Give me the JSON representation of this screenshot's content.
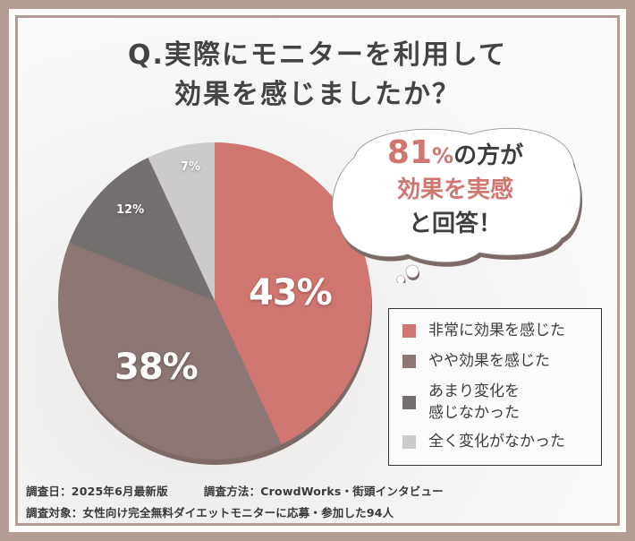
{
  "title": {
    "line1": "Q.実際にモニターを利用して",
    "line2": "効果を感じましたか？"
  },
  "bubble": {
    "pct_number": "81",
    "pct_sign": "%",
    "line1_rest": "の方が",
    "line2": "効果を実感",
    "line3": "と回答！"
  },
  "legend": {
    "items": [
      {
        "label": "非常に効果を感じた",
        "color": "#d07671"
      },
      {
        "label": "やや効果を感じた",
        "color": "#8c7774"
      },
      {
        "label": "あまり変化を\n感じなかった",
        "color": "#757070"
      },
      {
        "label": "全く変化がなかった",
        "color": "#cccaca"
      }
    ]
  },
  "slice_labels": {
    "very": "43%",
    "somewhat": "38%",
    "little": "12%",
    "none": "7%"
  },
  "footer": {
    "date": "調査日：2025年6月最新版",
    "method": "調査方法：CrowdWorks・街頭インタビュー",
    "target": "調査対象：女性向け完全無料ダイエットモニターに応募・参加した94人"
  },
  "colors": {
    "frame": "#b39c94",
    "accent": "#cf7671",
    "title_text": "#454343"
  },
  "chart_data": {
    "type": "pie",
    "title": "Q.実際にモニターを利用して効果を感じましたか？",
    "categories": [
      "非常に効果を感じた",
      "やや効果を感じた",
      "あまり変化を感じなかった",
      "全く変化がなかった"
    ],
    "values": [
      43,
      38,
      12,
      7
    ],
    "unit": "%",
    "colors": [
      "#d07671",
      "#8c7774",
      "#757070",
      "#cccaca"
    ],
    "start_angle": "12 o'clock",
    "direction": "clockwise",
    "legend_position": "right",
    "annotation": "81%の方が効果を実感と回答！",
    "sample_size": 94
  }
}
